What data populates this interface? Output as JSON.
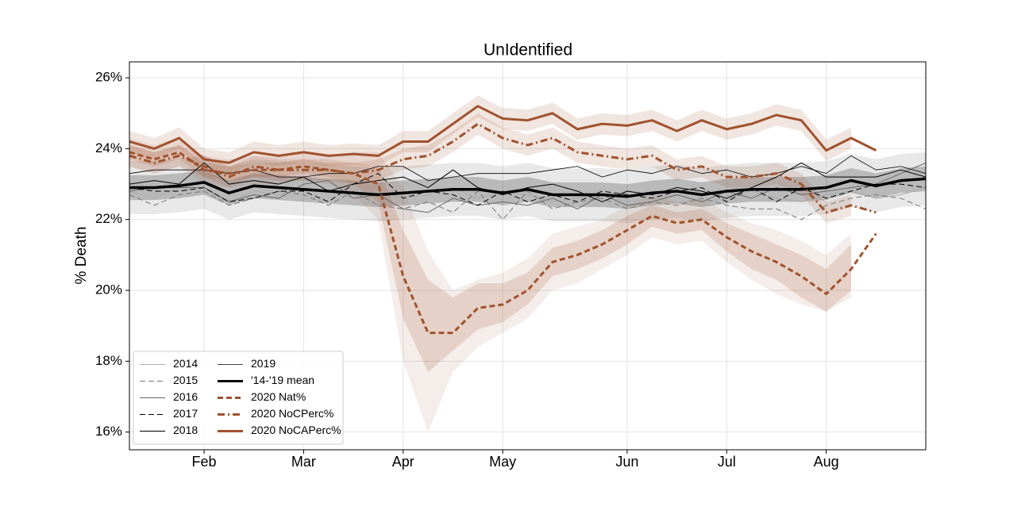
{
  "chart_data": {
    "type": "line",
    "title": "UnIdentified",
    "ylabel": "% Death",
    "x": [
      1,
      2,
      3,
      4,
      5,
      6,
      7,
      8,
      9,
      10,
      11,
      12,
      13,
      14,
      15,
      16,
      17,
      18,
      19,
      20,
      21,
      22,
      23,
      24,
      25,
      26,
      27,
      28,
      29,
      30,
      31,
      32,
      33
    ],
    "xlim": [
      1,
      33
    ],
    "xticks": [
      {
        "value": 4,
        "label": "Feb"
      },
      {
        "value": 8,
        "label": "Mar"
      },
      {
        "value": 12,
        "label": "Apr"
      },
      {
        "value": 16,
        "label": "May"
      },
      {
        "value": 21,
        "label": "Jun"
      },
      {
        "value": 25,
        "label": "Jul"
      },
      {
        "value": 29,
        "label": "Aug"
      }
    ],
    "ylim": [
      15.5,
      26.45
    ],
    "yticks": [
      {
        "value": 16,
        "label": "16%"
      },
      {
        "value": 18,
        "label": "18%"
      },
      {
        "value": 20,
        "label": "20%"
      },
      {
        "value": 22,
        "label": "22%"
      },
      {
        "value": 24,
        "label": "24%"
      },
      {
        "value": 26,
        "label": "26%"
      }
    ],
    "grid": true,
    "legend": "lower left",
    "series": [
      {
        "name": "2014",
        "color": "#aaaaaa",
        "dash": "solid",
        "width": 1,
        "values": [
          22.8,
          22.6,
          22.9,
          22.8,
          22.5,
          22.8,
          22.7,
          22.9,
          22.8,
          22.6,
          22.8,
          22.6,
          22.7,
          22.9,
          22.6,
          22.8,
          22.7,
          22.5,
          22.6,
          22.7,
          22.5,
          22.6,
          22.7,
          22.5,
          22.6,
          22.8,
          22.6,
          22.5,
          22.7,
          22.8,
          22.6,
          22.7,
          22.9
        ]
      },
      {
        "name": "2015",
        "color": "#777777",
        "dash": "dashed",
        "width": 1,
        "values": [
          22.7,
          22.4,
          22.7,
          22.8,
          22.4,
          22.6,
          22.8,
          22.7,
          22.4,
          22.8,
          22.4,
          22.3,
          22.5,
          22.2,
          22.8,
          22.0,
          22.8,
          22.3,
          22.5,
          22.6,
          22.3,
          22.5,
          22.4,
          22.6,
          22.4,
          22.3,
          22.3,
          22.0,
          22.4,
          22.6,
          22.7,
          22.6,
          22.3
        ]
      },
      {
        "name": "2016",
        "color": "#666666",
        "dash": "solid",
        "width": 1,
        "values": [
          22.8,
          22.9,
          22.9,
          22.9,
          22.5,
          22.7,
          22.6,
          23.0,
          23.1,
          22.6,
          22.7,
          22.3,
          22.2,
          22.6,
          22.4,
          22.5,
          22.4,
          22.6,
          22.3,
          22.7,
          22.4,
          22.5,
          22.7,
          22.5,
          22.8,
          22.6,
          22.9,
          22.7,
          22.8,
          22.9,
          23.0,
          23.3,
          23.6
        ]
      },
      {
        "name": "2017",
        "color": "#000000",
        "dash": "dashed",
        "width": 1,
        "values": [
          22.9,
          22.8,
          22.8,
          22.9,
          22.5,
          22.6,
          22.8,
          22.8,
          22.5,
          23.0,
          23.3,
          22.6,
          22.8,
          22.7,
          22.4,
          22.8,
          22.5,
          22.7,
          22.5,
          22.8,
          22.7,
          22.6,
          22.8,
          22.9,
          22.5,
          22.9,
          22.5,
          22.9,
          22.6,
          22.8,
          23.0,
          23.0,
          22.9
        ]
      },
      {
        "name": "2018",
        "color": "#000000",
        "dash": "solid",
        "width": 1,
        "values": [
          23.0,
          23.1,
          23.0,
          23.6,
          23.0,
          23.1,
          23.0,
          23.2,
          22.8,
          23.0,
          23.1,
          23.2,
          22.9,
          23.4,
          22.9,
          22.7,
          22.9,
          23.0,
          22.8,
          22.5,
          22.8,
          22.7,
          22.9,
          22.8,
          22.6,
          22.9,
          23.2,
          23.6,
          23.2,
          23.2,
          23.2,
          23.4,
          23.2
        ]
      },
      {
        "name": "2019",
        "color": "#000000",
        "dash": "solid",
        "width": 0.8,
        "values": [
          23.3,
          23.4,
          23.4,
          23.4,
          23.3,
          23.4,
          23.2,
          23.2,
          23.3,
          23.3,
          23.5,
          23.5,
          23.1,
          23.2,
          23.3,
          23.3,
          23.3,
          23.4,
          23.5,
          23.2,
          23.4,
          23.3,
          23.5,
          23.3,
          23.4,
          23.2,
          23.3,
          23.5,
          23.3,
          23.8,
          23.4,
          23.5,
          23.3
        ]
      },
      {
        "name": "'14-'19 mean",
        "color": "#000000",
        "dash": "solid",
        "width": 3.5,
        "values": [
          22.9,
          22.9,
          22.95,
          23.05,
          22.75,
          22.95,
          22.9,
          22.85,
          22.8,
          22.75,
          22.7,
          22.75,
          22.8,
          22.85,
          22.85,
          22.75,
          22.85,
          22.7,
          22.7,
          22.7,
          22.65,
          22.75,
          22.8,
          22.7,
          22.8,
          22.85,
          22.85,
          22.85,
          22.9,
          23.1,
          22.95,
          23.1,
          23.15
        ],
        "bands": [
          {
            "opacity": 0.09,
            "lower": [
              22.15,
              22.15,
              22.2,
              22.3,
              22.0,
              22.2,
              22.15,
              22.1,
              22.05,
              22.0,
              21.95,
              22.0,
              22.05,
              22.1,
              22.1,
              22.0,
              22.1,
              21.95,
              21.95,
              21.95,
              21.9,
              22.0,
              22.05,
              21.95,
              22.05,
              22.1,
              22.1,
              22.1,
              22.15,
              22.35,
              22.2,
              22.35,
              22.4
            ],
            "upper": [
              23.65,
              23.65,
              23.7,
              23.8,
              23.5,
              23.7,
              23.65,
              23.6,
              23.55,
              23.5,
              23.45,
              23.5,
              23.55,
              23.6,
              23.6,
              23.5,
              23.6,
              23.45,
              23.45,
              23.45,
              23.4,
              23.5,
              23.55,
              23.45,
              23.55,
              23.6,
              23.6,
              23.6,
              23.65,
              23.85,
              23.7,
              23.85,
              23.9
            ]
          },
          {
            "opacity": 0.2,
            "lower": [
              22.55,
              22.55,
              22.6,
              22.7,
              22.4,
              22.6,
              22.55,
              22.5,
              22.45,
              22.4,
              22.35,
              22.4,
              22.45,
              22.5,
              22.5,
              22.4,
              22.5,
              22.35,
              22.35,
              22.35,
              22.3,
              22.4,
              22.45,
              22.35,
              22.45,
              22.5,
              22.5,
              22.5,
              22.55,
              22.75,
              22.6,
              22.75,
              22.8
            ],
            "upper": [
              23.25,
              23.25,
              23.3,
              23.4,
              23.1,
              23.3,
              23.25,
              23.2,
              23.15,
              23.1,
              23.05,
              23.1,
              23.15,
              23.2,
              23.2,
              23.1,
              23.2,
              23.05,
              23.05,
              23.05,
              23.0,
              23.1,
              23.15,
              23.05,
              23.15,
              23.2,
              23.2,
              23.2,
              23.25,
              23.45,
              23.3,
              23.45,
              23.5
            ]
          }
        ]
      },
      {
        "name": "2020 Nat%",
        "color": "#a0522d",
        "dash": "dashed",
        "width": 3,
        "values": [
          23.9,
          23.7,
          23.9,
          23.4,
          23.3,
          23.4,
          23.4,
          23.5,
          23.4,
          23.3,
          23.0,
          20.4,
          18.8,
          18.8,
          19.5,
          19.6,
          20.0,
          20.8,
          21.0,
          21.3,
          21.7,
          22.1,
          21.9,
          22.0,
          21.5,
          21.1,
          20.8,
          20.4,
          19.9,
          20.6,
          21.6,
          null,
          null
        ],
        "bands": [
          {
            "opacity": 0.1,
            "lower": [
              23.5,
              23.3,
              23.5,
              23.0,
              22.9,
              23.0,
              23.0,
              23.1,
              23.0,
              22.7,
              22.0,
              18.0,
              16.0,
              17.7,
              18.4,
              18.8,
              19.2,
              20.0,
              20.2,
              20.6,
              21.0,
              21.5,
              21.3,
              21.4,
              20.8,
              20.3,
              19.9,
              19.6,
              19.4,
              19.8,
              null,
              null,
              null
            ],
            "upper": [
              24.3,
              24.1,
              24.3,
              23.8,
              23.7,
              23.8,
              23.8,
              23.9,
              23.8,
              23.9,
              23.9,
              22.9,
              21.1,
              20.0,
              20.3,
              20.5,
              20.9,
              21.6,
              21.8,
              22.0,
              22.4,
              22.7,
              22.5,
              22.6,
              22.2,
              21.9,
              21.7,
              21.4,
              21.0,
              21.6,
              null,
              null,
              null
            ]
          },
          {
            "opacity": 0.18,
            "lower": [
              23.7,
              23.5,
              23.7,
              23.2,
              23.1,
              23.2,
              23.2,
              23.3,
              23.2,
              23.0,
              22.5,
              19.2,
              17.7,
              18.3,
              18.9,
              19.1,
              19.6,
              20.4,
              20.6,
              20.9,
              21.3,
              21.8,
              21.6,
              21.7,
              21.1,
              20.6,
              20.3,
              19.8,
              19.4,
              20.0,
              null,
              null,
              null
            ],
            "upper": [
              24.1,
              23.9,
              24.1,
              23.6,
              23.5,
              23.6,
              23.6,
              23.7,
              23.6,
              23.6,
              23.5,
              21.7,
              20.3,
              19.8,
              20.2,
              20.2,
              20.5,
              21.2,
              21.4,
              21.7,
              22.1,
              22.4,
              22.2,
              22.3,
              21.9,
              21.6,
              21.3,
              21.0,
              20.6,
              21.3,
              null,
              null,
              null
            ]
          }
        ]
      },
      {
        "name": "2020 NoCPerc%",
        "color": "#a0522d",
        "dash": "dashdot",
        "width": 3,
        "values": [
          23.8,
          23.6,
          23.8,
          23.5,
          23.2,
          23.5,
          23.4,
          23.4,
          23.4,
          23.3,
          23.4,
          23.7,
          23.8,
          24.2,
          24.7,
          24.3,
          24.1,
          24.3,
          23.9,
          23.8,
          23.7,
          23.8,
          23.4,
          23.5,
          23.2,
          23.2,
          23.3,
          23.0,
          22.2,
          22.4,
          22.2,
          null,
          null
        ],
        "bands": [
          {
            "opacity": 0.15,
            "lower": [
              23.5,
              23.3,
              23.5,
              23.2,
              22.9,
              23.2,
              23.1,
              23.1,
              23.1,
              23.0,
              23.1,
              23.4,
              23.5,
              23.9,
              24.4,
              24.0,
              23.8,
              24.0,
              23.6,
              23.5,
              23.4,
              23.5,
              23.1,
              23.2,
              22.9,
              22.9,
              23.0,
              22.7,
              21.9,
              22.1,
              null,
              null,
              null
            ],
            "upper": [
              24.1,
              23.9,
              24.1,
              23.8,
              23.5,
              23.8,
              23.7,
              23.7,
              23.7,
              23.6,
              23.7,
              24.0,
              24.1,
              24.5,
              25.0,
              24.6,
              24.4,
              24.6,
              24.2,
              24.1,
              24.0,
              24.1,
              23.7,
              23.8,
              23.5,
              23.5,
              23.6,
              23.3,
              22.5,
              22.7,
              null,
              null,
              null
            ]
          }
        ]
      },
      {
        "name": "2020 NoCAPerc%",
        "color": "#a0522d",
        "dash": "solid",
        "width": 3,
        "values": [
          24.2,
          24.0,
          24.3,
          23.7,
          23.6,
          23.9,
          23.8,
          23.9,
          23.8,
          23.85,
          23.8,
          24.2,
          24.2,
          24.7,
          25.2,
          24.85,
          24.8,
          25.0,
          24.55,
          24.7,
          24.65,
          24.8,
          24.5,
          24.8,
          24.55,
          24.7,
          24.95,
          24.8,
          23.95,
          24.3,
          23.95,
          null,
          null
        ],
        "bands": [
          {
            "opacity": 0.15,
            "lower": [
              23.9,
              23.7,
              24.0,
              23.4,
              23.3,
              23.6,
              23.5,
              23.6,
              23.5,
              23.55,
              23.5,
              23.9,
              23.9,
              24.4,
              24.9,
              24.55,
              24.5,
              24.7,
              24.25,
              24.4,
              24.35,
              24.5,
              24.2,
              24.5,
              24.25,
              24.4,
              24.65,
              24.5,
              23.65,
              24.0,
              null,
              null,
              null
            ],
            "upper": [
              24.5,
              24.3,
              24.6,
              24.0,
              23.9,
              24.2,
              24.1,
              24.2,
              24.1,
              24.15,
              24.1,
              24.5,
              24.5,
              25.0,
              25.5,
              25.15,
              25.1,
              25.3,
              24.85,
              25.0,
              24.95,
              25.1,
              24.8,
              25.1,
              24.85,
              25.0,
              25.25,
              25.1,
              24.25,
              24.6,
              null,
              null,
              null
            ]
          }
        ]
      }
    ]
  }
}
